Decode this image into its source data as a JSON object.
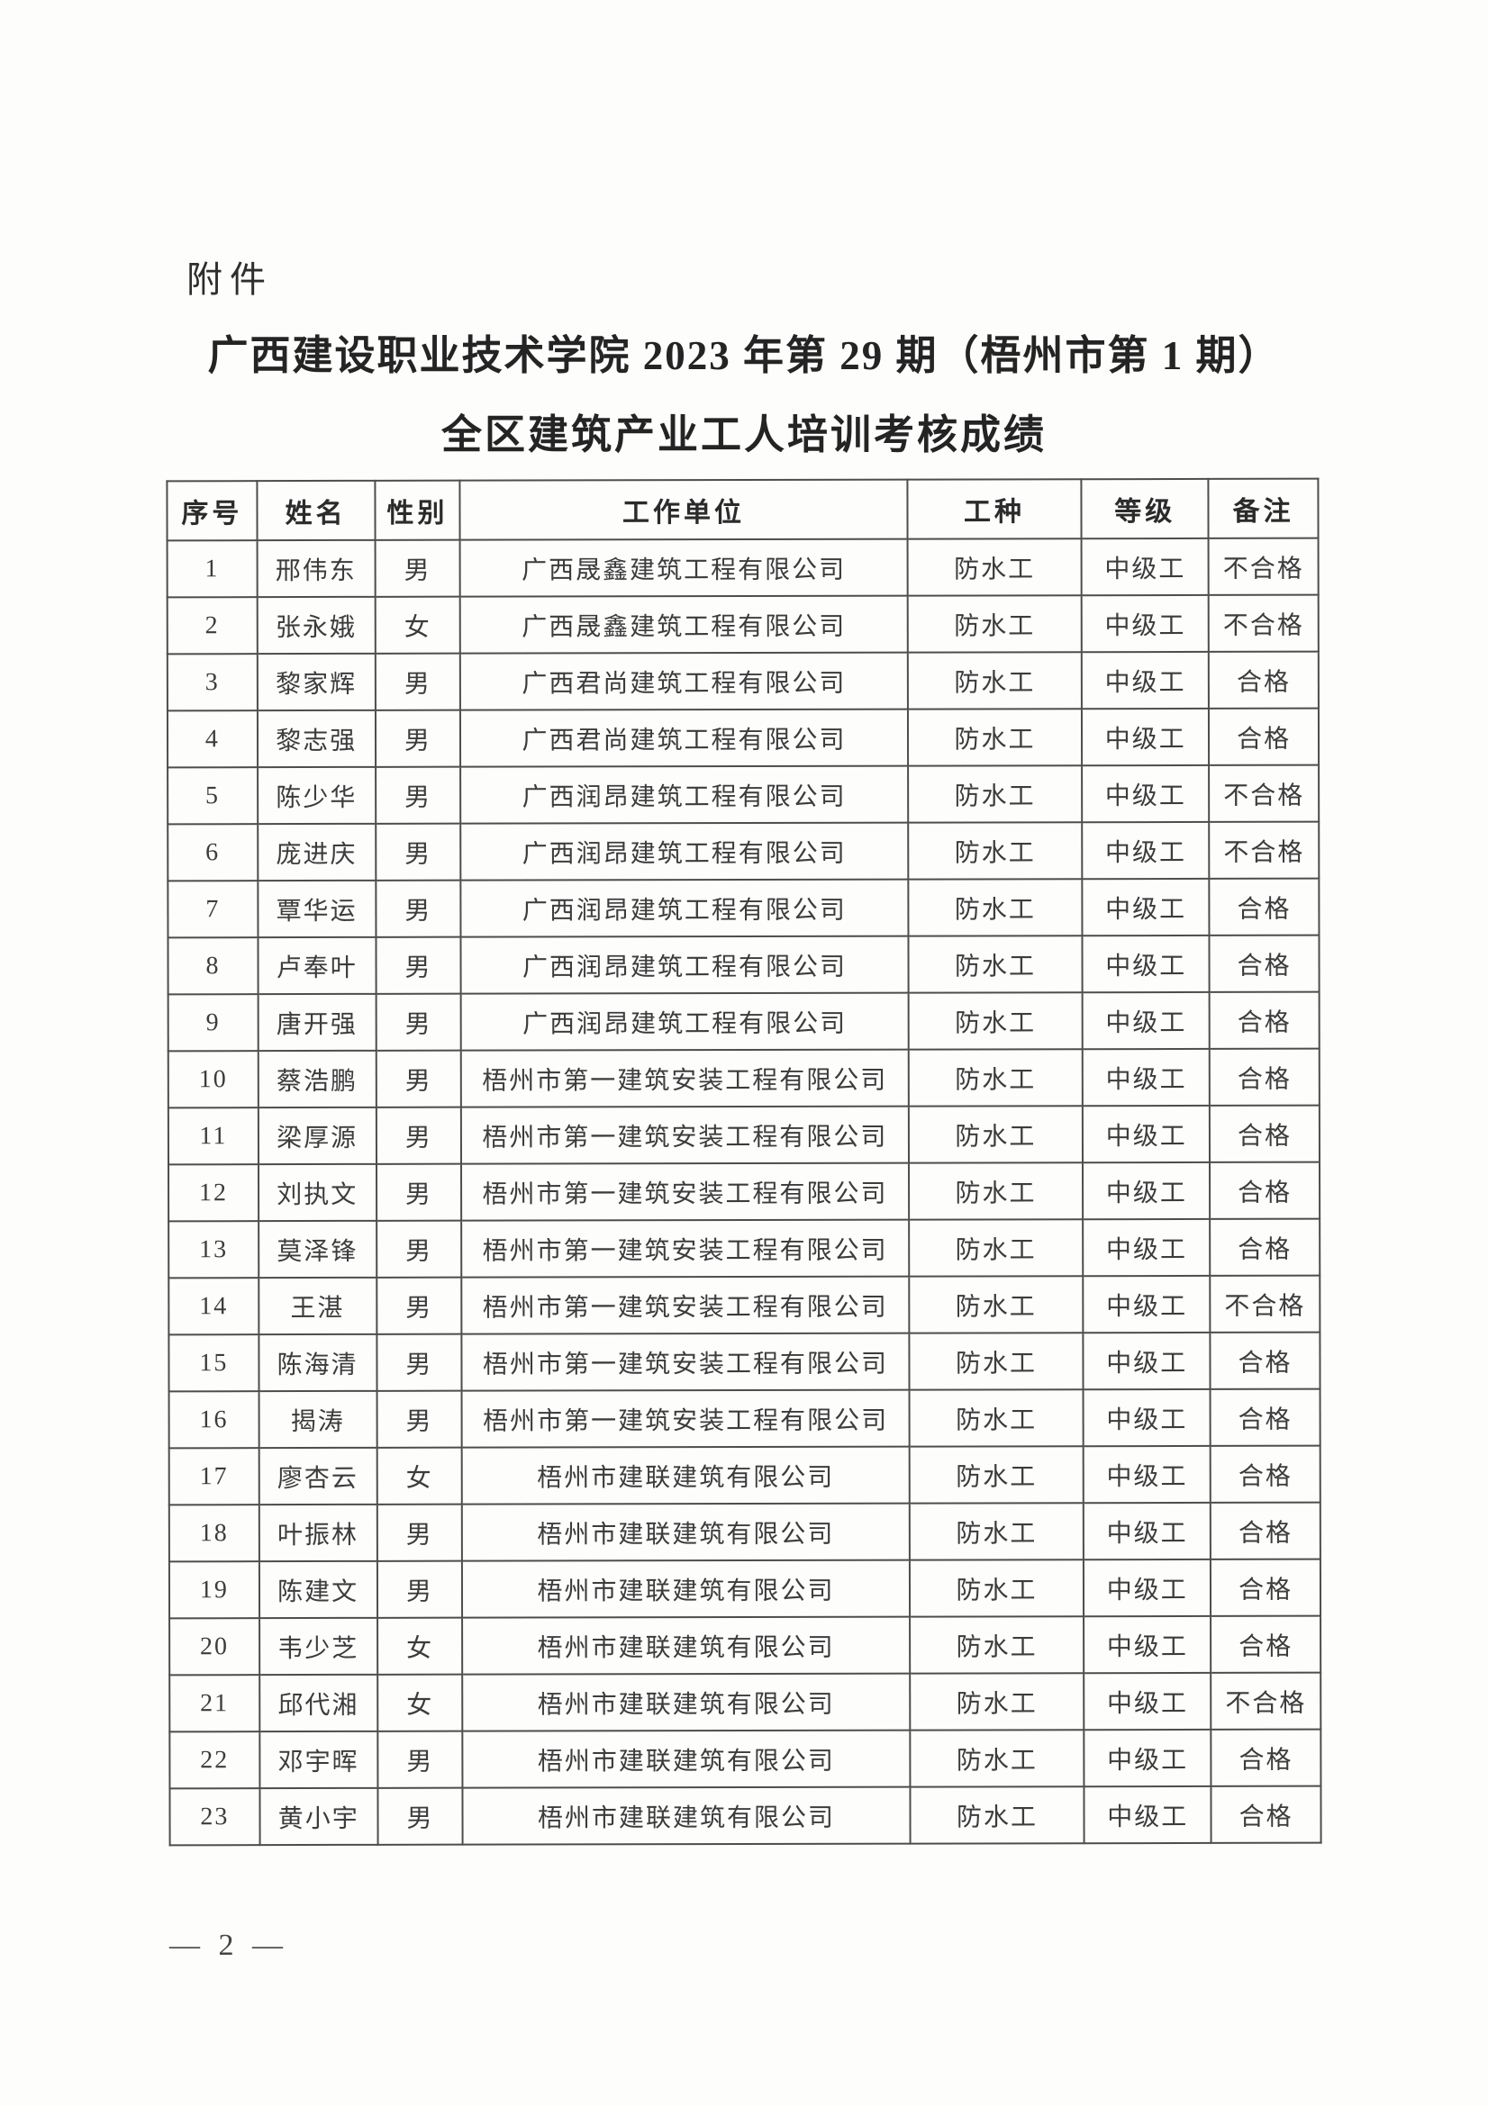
{
  "page": {
    "attachment_label": "附件",
    "title_line1": "广西建设职业技术学院 2023 年第 29 期（梧州市第 1 期）",
    "title_line2": "全区建筑产业工人培训考核成绩",
    "page_number": "— 2 —"
  },
  "table": {
    "headers": [
      "序号",
      "姓名",
      "性别",
      "工作单位",
      "工种",
      "等级",
      "备注"
    ],
    "column_keys": [
      "index",
      "name",
      "gender",
      "employer",
      "trade",
      "level",
      "remark"
    ],
    "rows": [
      [
        "1",
        "邢伟东",
        "男",
        "广西晟鑫建筑工程有限公司",
        "防水工",
        "中级工",
        "不合格"
      ],
      [
        "2",
        "张永娥",
        "女",
        "广西晟鑫建筑工程有限公司",
        "防水工",
        "中级工",
        "不合格"
      ],
      [
        "3",
        "黎家辉",
        "男",
        "广西君尚建筑工程有限公司",
        "防水工",
        "中级工",
        "合格"
      ],
      [
        "4",
        "黎志强",
        "男",
        "广西君尚建筑工程有限公司",
        "防水工",
        "中级工",
        "合格"
      ],
      [
        "5",
        "陈少华",
        "男",
        "广西润昂建筑工程有限公司",
        "防水工",
        "中级工",
        "不合格"
      ],
      [
        "6",
        "庞进庆",
        "男",
        "广西润昂建筑工程有限公司",
        "防水工",
        "中级工",
        "不合格"
      ],
      [
        "7",
        "覃华运",
        "男",
        "广西润昂建筑工程有限公司",
        "防水工",
        "中级工",
        "合格"
      ],
      [
        "8",
        "卢奉叶",
        "男",
        "广西润昂建筑工程有限公司",
        "防水工",
        "中级工",
        "合格"
      ],
      [
        "9",
        "唐开强",
        "男",
        "广西润昂建筑工程有限公司",
        "防水工",
        "中级工",
        "合格"
      ],
      [
        "10",
        "蔡浩鹏",
        "男",
        "梧州市第一建筑安装工程有限公司",
        "防水工",
        "中级工",
        "合格"
      ],
      [
        "11",
        "梁厚源",
        "男",
        "梧州市第一建筑安装工程有限公司",
        "防水工",
        "中级工",
        "合格"
      ],
      [
        "12",
        "刘执文",
        "男",
        "梧州市第一建筑安装工程有限公司",
        "防水工",
        "中级工",
        "合格"
      ],
      [
        "13",
        "莫泽锋",
        "男",
        "梧州市第一建筑安装工程有限公司",
        "防水工",
        "中级工",
        "合格"
      ],
      [
        "14",
        "王湛",
        "男",
        "梧州市第一建筑安装工程有限公司",
        "防水工",
        "中级工",
        "不合格"
      ],
      [
        "15",
        "陈海清",
        "男",
        "梧州市第一建筑安装工程有限公司",
        "防水工",
        "中级工",
        "合格"
      ],
      [
        "16",
        "揭涛",
        "男",
        "梧州市第一建筑安装工程有限公司",
        "防水工",
        "中级工",
        "合格"
      ],
      [
        "17",
        "廖杏云",
        "女",
        "梧州市建联建筑有限公司",
        "防水工",
        "中级工",
        "合格"
      ],
      [
        "18",
        "叶振林",
        "男",
        "梧州市建联建筑有限公司",
        "防水工",
        "中级工",
        "合格"
      ],
      [
        "19",
        "陈建文",
        "男",
        "梧州市建联建筑有限公司",
        "防水工",
        "中级工",
        "合格"
      ],
      [
        "20",
        "韦少芝",
        "女",
        "梧州市建联建筑有限公司",
        "防水工",
        "中级工",
        "合格"
      ],
      [
        "21",
        "邱代湘",
        "女",
        "梧州市建联建筑有限公司",
        "防水工",
        "中级工",
        "不合格"
      ],
      [
        "22",
        "邓宇晖",
        "男",
        "梧州市建联建筑有限公司",
        "防水工",
        "中级工",
        "合格"
      ],
      [
        "23",
        "黄小宇",
        "男",
        "梧州市建联建筑有限公司",
        "防水工",
        "中级工",
        "合格"
      ]
    ]
  }
}
